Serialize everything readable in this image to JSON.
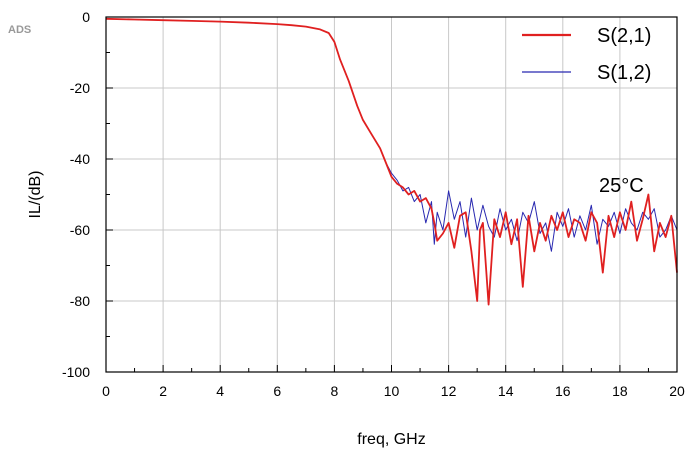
{
  "watermark": "ADS",
  "chart_data": {
    "type": "line",
    "title": "",
    "xlabel": "freq, GHz",
    "ylabel": "IL/(dB)",
    "xlim": [
      0,
      20
    ],
    "ylim": [
      -100,
      0
    ],
    "xticks": [
      0,
      2,
      4,
      6,
      8,
      10,
      12,
      14,
      16,
      18,
      20
    ],
    "yticks": [
      -100,
      -80,
      -60,
      -40,
      -20,
      0
    ],
    "grid": true,
    "legend_position": "top-right",
    "annotation": "25°C",
    "series": [
      {
        "name": "S(2,1)",
        "color": "#e02020",
        "x": [
          0,
          1,
          2,
          3,
          4,
          5,
          6,
          6.5,
          7,
          7.5,
          7.8,
          8,
          8.2,
          8.5,
          8.8,
          9,
          9.3,
          9.6,
          9.8,
          10,
          10.2,
          10.4,
          10.6,
          10.8,
          11,
          11.2,
          11.4,
          11.5,
          11.6,
          11.8,
          12,
          12.2,
          12.4,
          12.6,
          12.8,
          13,
          13.1,
          13.2,
          13.4,
          13.6,
          13.8,
          14,
          14.2,
          14.4,
          14.6,
          14.8,
          15,
          15.2,
          15.4,
          15.6,
          15.8,
          16,
          16.2,
          16.4,
          16.6,
          16.8,
          17,
          17.2,
          17.4,
          17.6,
          17.8,
          18,
          18.2,
          18.4,
          18.6,
          18.8,
          19,
          19.2,
          19.4,
          19.6,
          19.8,
          20
        ],
        "y": [
          -0.5,
          -0.7,
          -0.9,
          -1.1,
          -1.3,
          -1.6,
          -2,
          -2.3,
          -2.7,
          -3.5,
          -4.5,
          -7,
          -12,
          -18,
          -25,
          -29,
          -33,
          -37,
          -41,
          -45,
          -47,
          -48,
          -50,
          -49,
          -52,
          -51,
          -54,
          -58,
          -63,
          -61,
          -58,
          -65,
          -56,
          -55,
          -66,
          -80,
          -60,
          -58,
          -81,
          -57,
          -62,
          -55,
          -64,
          -57,
          -76,
          -56,
          -66,
          -58,
          -63,
          -56,
          -60,
          -55,
          -62,
          -57,
          -58,
          -63,
          -55,
          -58,
          -72,
          -56,
          -62,
          -55,
          -60,
          -52,
          -63,
          -57,
          -50,
          -66,
          -58,
          -62,
          -56,
          -72
        ]
      },
      {
        "name": "S(1,2)",
        "color": "#2828b0",
        "x": [
          0,
          1,
          2,
          3,
          4,
          5,
          6,
          6.5,
          7,
          7.5,
          7.8,
          8,
          8.2,
          8.5,
          8.8,
          9,
          9.3,
          9.6,
          9.8,
          10,
          10.2,
          10.4,
          10.6,
          10.8,
          11,
          11.2,
          11.4,
          11.5,
          11.6,
          11.8,
          12,
          12.2,
          12.4,
          12.6,
          12.8,
          13,
          13.2,
          13.4,
          13.6,
          13.8,
          14,
          14.2,
          14.4,
          14.6,
          14.8,
          15,
          15.2,
          15.4,
          15.6,
          15.8,
          16,
          16.2,
          16.4,
          16.6,
          16.8,
          17,
          17.2,
          17.4,
          17.6,
          17.8,
          18,
          18.2,
          18.4,
          18.6,
          18.8,
          19,
          19.2,
          19.4,
          19.6,
          19.8,
          20
        ],
        "y": [
          -0.5,
          -0.7,
          -0.9,
          -1.1,
          -1.3,
          -1.6,
          -2,
          -2.3,
          -2.7,
          -3.5,
          -4.5,
          -7,
          -12,
          -18,
          -25,
          -29,
          -33,
          -37,
          -41,
          -44,
          -46,
          -49,
          -48,
          -52,
          -50,
          -58,
          -52,
          -64,
          -55,
          -60,
          -49,
          -57,
          -52,
          -62,
          -51,
          -60,
          -53,
          -59,
          -62,
          -54,
          -60,
          -57,
          -63,
          -55,
          -58,
          -52,
          -61,
          -58,
          -66,
          -55,
          -59,
          -54,
          -62,
          -56,
          -60,
          -53,
          -64,
          -57,
          -59,
          -55,
          -61,
          -54,
          -58,
          -60,
          -55,
          -57,
          -54,
          -62,
          -60,
          -56,
          -60
        ]
      }
    ]
  }
}
